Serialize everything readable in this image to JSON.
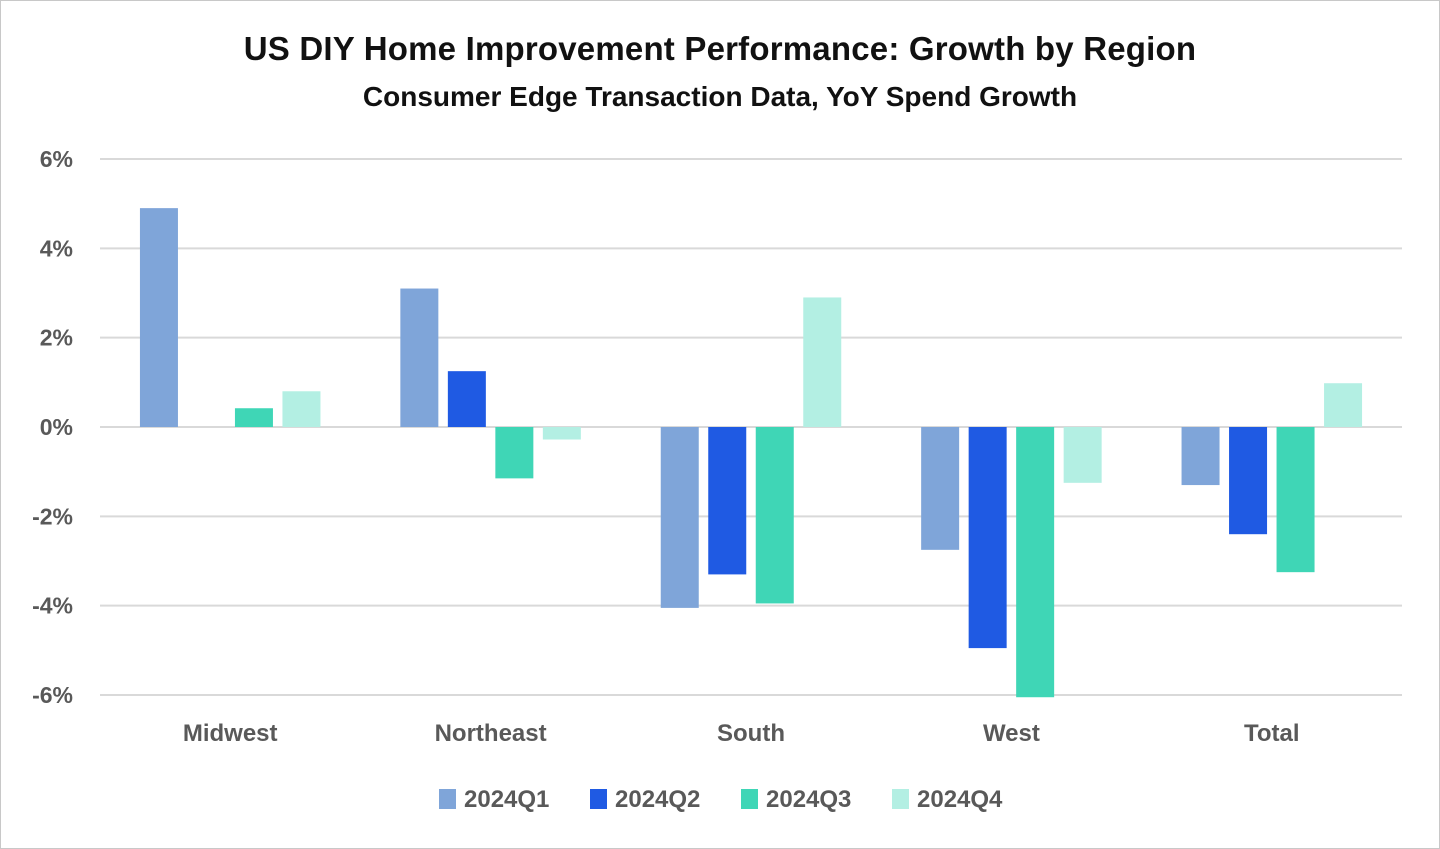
{
  "chart_data": {
    "type": "bar",
    "title": "US DIY Home Improvement Performance: Growth by Region",
    "subtitle": "Consumer Edge Transaction Data, YoY Spend Growth",
    "xlabel": "",
    "ylabel": "",
    "ylim": [
      -6,
      6
    ],
    "yticks": [
      6,
      4,
      2,
      0,
      -2,
      -4,
      -6
    ],
    "ytick_labels": [
      "6%",
      "4%",
      "2%",
      "0%",
      "-2%",
      "-4%",
      "-6%"
    ],
    "grid": true,
    "legend_position": "bottom",
    "categories": [
      "Midwest",
      "Northeast",
      "South",
      "West",
      "Total"
    ],
    "series": [
      {
        "name": "2024Q1",
        "color": "#7fa5d9",
        "values": [
          4.9,
          3.1,
          -4.05,
          -2.75,
          -1.3
        ]
      },
      {
        "name": "2024Q2",
        "color": "#1f5ae3",
        "values": [
          0,
          1.25,
          -3.3,
          -4.95,
          -2.4
        ]
      },
      {
        "name": "2024Q3",
        "color": "#3fd6b6",
        "values": [
          0.42,
          -1.15,
          -3.95,
          -6.05,
          -3.25
        ]
      },
      {
        "name": "2024Q4",
        "color": "#b3efe3",
        "values": [
          0.8,
          -0.28,
          2.9,
          -1.25,
          0.98
        ]
      }
    ]
  }
}
